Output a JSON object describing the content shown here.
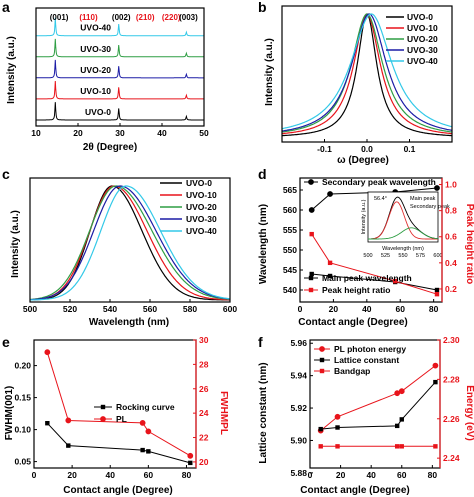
{
  "panels": {
    "a": {
      "letter": "a",
      "xlabel": "2θ (Degree)",
      "ylabel": "Intensity (a.u.)"
    },
    "b": {
      "letter": "b",
      "xlabel": "ω (Degree)",
      "ylabel": "Intensity (a.u.)"
    },
    "c": {
      "letter": "c",
      "xlabel": "Wavelength (nm)",
      "ylabel": "Intensity (a.u.)"
    },
    "d": {
      "letter": "d",
      "xlabel": "Contact angle (Degree)",
      "ylabel": "Wavelength (nm)",
      "ylabel2": "Peak height ratio"
    },
    "e": {
      "letter": "e",
      "xlabel": "Contact angle (Degree)",
      "ylabel": "FWHM(001)",
      "ylabel2": "FWHMPL"
    },
    "f": {
      "letter": "f",
      "xlabel": "Contact angle (Degree)",
      "ylabel": "Lattice constant (nm)",
      "ylabel2": "Energy (eV)"
    }
  },
  "colors": {
    "black": "#000000",
    "red": "#e8141b",
    "green": "#2f9e44",
    "blue": "#1c1ca6",
    "cyan": "#33c9e8",
    "redline": "#e03030"
  },
  "chart_data": [
    {
      "panel": "a",
      "type": "line",
      "xlim": [
        10,
        50
      ],
      "xticks": [
        10,
        20,
        30,
        40,
        50
      ],
      "series": [
        {
          "name": "UVO-0",
          "color": "black",
          "offset": 0
        },
        {
          "name": "UVO-10",
          "color": "red",
          "offset": 1
        },
        {
          "name": "UVO-20",
          "color": "blue",
          "offset": 2
        },
        {
          "name": "UVO-30",
          "color": "green",
          "offset": 3
        },
        {
          "name": "UVO-40",
          "color": "cyan",
          "offset": 4
        }
      ],
      "peaks": [
        {
          "pos": 14.6,
          "height": 1.0
        },
        {
          "pos": 29.7,
          "height": 0.65
        },
        {
          "pos": 45.8,
          "height": 0.2
        }
      ],
      "annotations": [
        {
          "text": "(001)",
          "x": 15.5,
          "color": "black"
        },
        {
          "text": "(110)",
          "x": 22.5,
          "color": "red"
        },
        {
          "text": "(002)",
          "x": 30.3,
          "color": "black"
        },
        {
          "text": "(210)",
          "x": 36.0,
          "color": "red"
        },
        {
          "text": "(220)",
          "x": 42.2,
          "color": "red"
        },
        {
          "text": "(003)",
          "x": 46.3,
          "color": "black"
        }
      ]
    },
    {
      "panel": "b",
      "type": "line",
      "xlim": [
        -0.2,
        0.2
      ],
      "xticks": [
        -0.1,
        0.0,
        0.1
      ],
      "series": [
        {
          "name": "UVO-0",
          "color": "black",
          "center": 0.0,
          "width": 0.028
        },
        {
          "name": "UVO-10",
          "color": "red",
          "center": 0.0,
          "width": 0.038
        },
        {
          "name": "UVO-20",
          "color": "green",
          "center": 0.0,
          "width": 0.045
        },
        {
          "name": "UVO-30",
          "color": "blue",
          "center": 0.005,
          "width": 0.05
        },
        {
          "name": "UVO-40",
          "color": "cyan",
          "center": 0.01,
          "width": 0.06
        }
      ]
    },
    {
      "panel": "c",
      "type": "line",
      "xlim": [
        500,
        600
      ],
      "xticks": [
        500,
        520,
        540,
        560,
        580,
        600
      ],
      "series": [
        {
          "name": "UVO-0",
          "color": "black",
          "center": 541,
          "width": 20
        },
        {
          "name": "UVO-10",
          "color": "red",
          "center": 542,
          "width": 22
        },
        {
          "name": "UVO-20",
          "color": "green",
          "center": 543,
          "width": 24
        },
        {
          "name": "UVO-30",
          "color": "blue",
          "center": 545,
          "width": 24
        },
        {
          "name": "UVO-40",
          "color": "cyan",
          "center": 548,
          "width": 23
        }
      ]
    },
    {
      "panel": "d",
      "type": "line",
      "x": [
        7,
        18,
        57,
        82
      ],
      "xlim": [
        0,
        85
      ],
      "xticks": [
        0,
        20,
        40,
        60,
        80
      ],
      "ylim": [
        537,
        568
      ],
      "yticks": [
        540,
        545,
        550,
        555,
        560,
        565
      ],
      "y2lim": [
        0.1,
        1.05
      ],
      "y2ticks": [
        0.2,
        0.4,
        0.6,
        0.8,
        1.0
      ],
      "series": [
        {
          "name": "Secondary peak wavelength",
          "axis": "left",
          "color": "black",
          "marker": "circle",
          "values": [
            560,
            564,
            564.5,
            565.5
          ]
        },
        {
          "name": "Main peak wavelength",
          "axis": "left",
          "color": "black",
          "marker": "square",
          "values": [
            544,
            543.5,
            542,
            540
          ]
        },
        {
          "name": "Peak height ratio",
          "axis": "right",
          "color": "red",
          "marker": "square",
          "values": [
            0.62,
            0.4,
            0.26,
            0.16
          ]
        }
      ],
      "inset": {
        "xlabel": "Wavelength (nm)",
        "ylabel": "Intensity (a.u.)",
        "xticks": [
          500,
          525,
          550,
          575,
          600
        ],
        "angle_label": "56.4°",
        "legend": [
          "Main peak",
          "Secondary peak"
        ]
      }
    },
    {
      "panel": "e",
      "type": "line",
      "x": [
        7,
        18,
        57,
        60,
        82
      ],
      "xlim": [
        0,
        85
      ],
      "xticks": [
        0,
        20,
        40,
        60,
        80
      ],
      "ylim": [
        0.04,
        0.24
      ],
      "yticks": [
        0.05,
        0.1,
        0.15,
        0.2
      ],
      "y2lim": [
        19.5,
        30
      ],
      "y2ticks": [
        20,
        22,
        24,
        26,
        28,
        30
      ],
      "series": [
        {
          "name": "Rocking curve",
          "axis": "left",
          "color": "black",
          "marker": "square",
          "values": [
            0.11,
            0.075,
            0.068,
            0.066,
            0.048
          ]
        },
        {
          "name": "PL",
          "axis": "right",
          "color": "red",
          "marker": "circle",
          "values": [
            29,
            23.4,
            23.2,
            22.5,
            20.5
          ]
        }
      ]
    },
    {
      "panel": "f",
      "type": "line",
      "x": [
        7,
        18,
        57,
        60,
        82
      ],
      "xlim": [
        0,
        85
      ],
      "xticks": [
        0,
        20,
        40,
        60,
        80
      ],
      "ylim": [
        5.883,
        5.962
      ],
      "yticks": [
        5.88,
        5.9,
        5.92,
        5.94,
        5.96
      ],
      "y2lim": [
        2.235,
        2.3
      ],
      "y2ticks": [
        2.24,
        2.26,
        2.28,
        2.3
      ],
      "series": [
        {
          "name": "PL photon energy",
          "axis": "right",
          "color": "red",
          "marker": "circle",
          "values": [
            2.254,
            2.261,
            2.273,
            2.274,
            2.287
          ]
        },
        {
          "name": "Lattice constant",
          "axis": "left",
          "color": "black",
          "marker": "square",
          "values": [
            5.907,
            5.908,
            5.909,
            5.913,
            5.936
          ]
        },
        {
          "name": "Bandgap",
          "axis": "right",
          "color": "red",
          "marker": "square",
          "values": [
            2.246,
            2.246,
            2.246,
            2.246,
            2.246
          ]
        }
      ]
    }
  ]
}
